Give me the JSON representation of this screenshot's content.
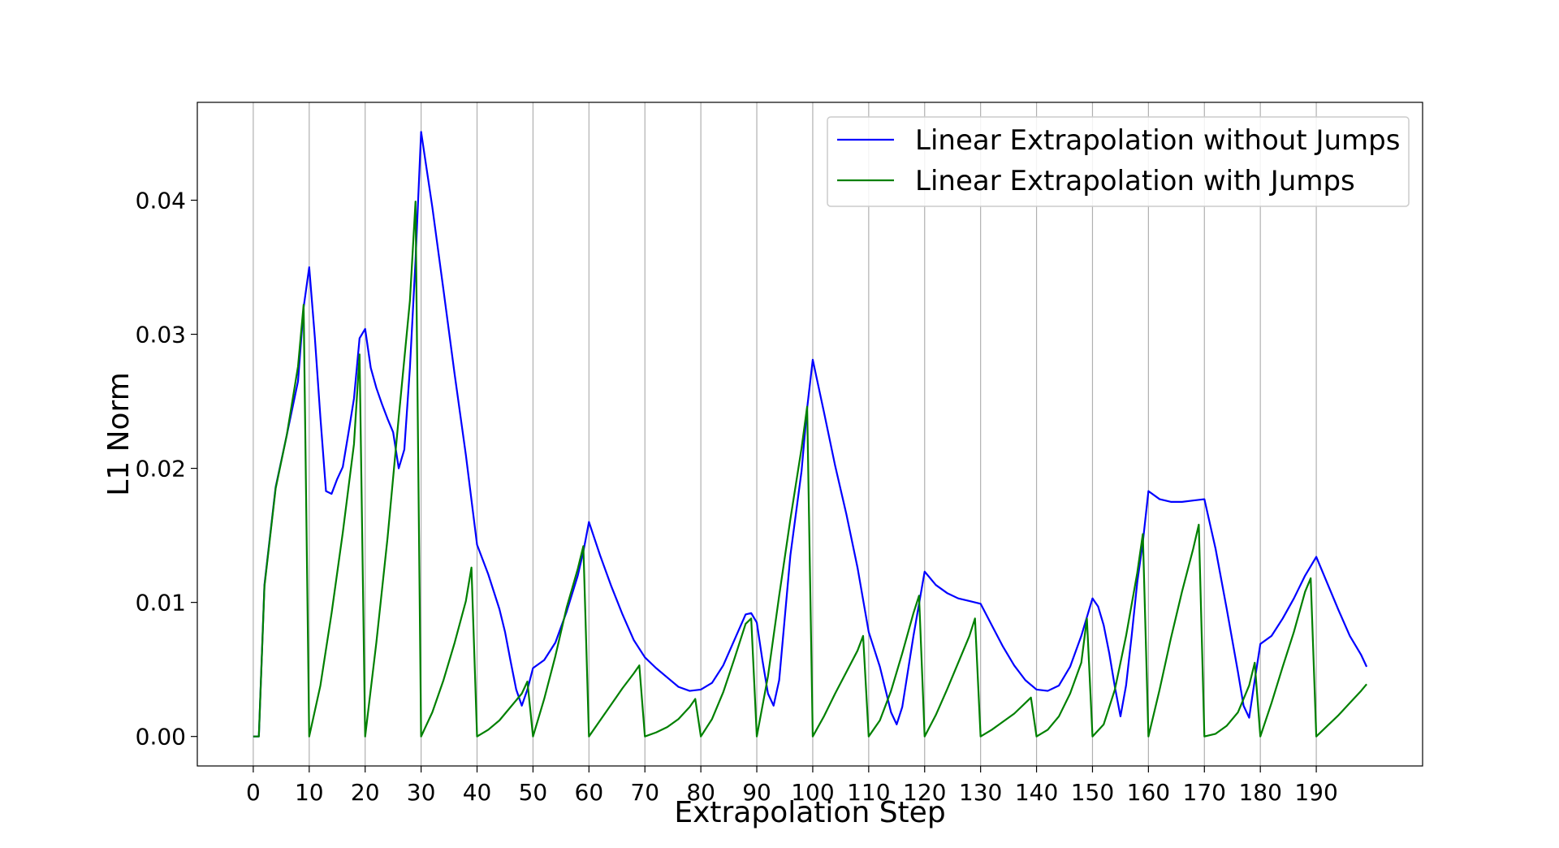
{
  "chart_data": {
    "type": "line",
    "xlabel": "Extrapolation Step",
    "ylabel": "L1 Norm",
    "xlim": [
      -10,
      209
    ],
    "ylim": [
      -0.0022,
      0.0473
    ],
    "grid": "vertical",
    "legend_position": "upper-right",
    "x_ticks": [
      0,
      10,
      20,
      30,
      40,
      50,
      60,
      70,
      80,
      90,
      100,
      110,
      120,
      130,
      140,
      150,
      160,
      170,
      180,
      190
    ],
    "y_ticks": [
      0.0,
      0.01,
      0.02,
      0.03,
      0.04
    ],
    "y_tick_labels": [
      "0.00",
      "0.01",
      "0.02",
      "0.03",
      "0.04"
    ],
    "series": [
      {
        "name": "Linear Extrapolation without Jumps",
        "color": "#0000ff",
        "points": [
          [
            0,
            0.0
          ],
          [
            1,
            0.0
          ],
          [
            2,
            0.0113
          ],
          [
            4,
            0.0186
          ],
          [
            6,
            0.0225
          ],
          [
            8,
            0.0265
          ],
          [
            9,
            0.032
          ],
          [
            10,
            0.035
          ],
          [
            11,
            0.0298
          ],
          [
            12,
            0.0238
          ],
          [
            13,
            0.0183
          ],
          [
            14,
            0.0181
          ],
          [
            15,
            0.0192
          ],
          [
            16,
            0.0201
          ],
          [
            17,
            0.0226
          ],
          [
            18,
            0.0252
          ],
          [
            19,
            0.0297
          ],
          [
            20,
            0.0304
          ],
          [
            21,
            0.0275
          ],
          [
            22,
            0.026
          ],
          [
            23,
            0.0248
          ],
          [
            24,
            0.0237
          ],
          [
            25,
            0.0227
          ],
          [
            26,
            0.02
          ],
          [
            27,
            0.0214
          ],
          [
            28,
            0.0275
          ],
          [
            29,
            0.0355
          ],
          [
            30,
            0.0451
          ],
          [
            32,
            0.0395
          ],
          [
            34,
            0.0333
          ],
          [
            36,
            0.027
          ],
          [
            38,
            0.021
          ],
          [
            40,
            0.0143
          ],
          [
            42,
            0.0121
          ],
          [
            44,
            0.0095
          ],
          [
            45,
            0.0078
          ],
          [
            46,
            0.0056
          ],
          [
            47,
            0.0035
          ],
          [
            48,
            0.0023
          ],
          [
            49,
            0.0035
          ],
          [
            50,
            0.0051
          ],
          [
            52,
            0.0057
          ],
          [
            54,
            0.007
          ],
          [
            56,
            0.0093
          ],
          [
            58,
            0.012
          ],
          [
            59,
            0.0138
          ],
          [
            60,
            0.016
          ],
          [
            62,
            0.0135
          ],
          [
            64,
            0.0112
          ],
          [
            66,
            0.0091
          ],
          [
            68,
            0.0072
          ],
          [
            70,
            0.0059
          ],
          [
            72,
            0.0051
          ],
          [
            74,
            0.0044
          ],
          [
            76,
            0.0037
          ],
          [
            78,
            0.0034
          ],
          [
            80,
            0.0035
          ],
          [
            82,
            0.004
          ],
          [
            84,
            0.0053
          ],
          [
            86,
            0.0072
          ],
          [
            88,
            0.0091
          ],
          [
            89,
            0.0092
          ],
          [
            90,
            0.0085
          ],
          [
            91,
            0.0057
          ],
          [
            92,
            0.0032
          ],
          [
            93,
            0.0023
          ],
          [
            94,
            0.0042
          ],
          [
            96,
            0.0135
          ],
          [
            98,
            0.0198
          ],
          [
            99,
            0.0245
          ],
          [
            100,
            0.0281
          ],
          [
            102,
            0.0242
          ],
          [
            104,
            0.0202
          ],
          [
            106,
            0.0166
          ],
          [
            108,
            0.0126
          ],
          [
            110,
            0.0078
          ],
          [
            112,
            0.0052
          ],
          [
            113,
            0.0035
          ],
          [
            114,
            0.0018
          ],
          [
            115,
            0.0009
          ],
          [
            116,
            0.0022
          ],
          [
            118,
            0.0075
          ],
          [
            120,
            0.0123
          ],
          [
            122,
            0.0113
          ],
          [
            124,
            0.0107
          ],
          [
            126,
            0.0103
          ],
          [
            128,
            0.0101
          ],
          [
            130,
            0.0099
          ],
          [
            132,
            0.0083
          ],
          [
            134,
            0.0067
          ],
          [
            136,
            0.0053
          ],
          [
            138,
            0.0042
          ],
          [
            140,
            0.0035
          ],
          [
            142,
            0.0034
          ],
          [
            144,
            0.0038
          ],
          [
            146,
            0.0052
          ],
          [
            148,
            0.0075
          ],
          [
            150,
            0.0103
          ],
          [
            151,
            0.0097
          ],
          [
            152,
            0.0083
          ],
          [
            153,
            0.0062
          ],
          [
            154,
            0.0037
          ],
          [
            155,
            0.0015
          ],
          [
            156,
            0.0038
          ],
          [
            157,
            0.0075
          ],
          [
            158,
            0.0115
          ],
          [
            159,
            0.0145
          ],
          [
            160,
            0.0183
          ],
          [
            162,
            0.0177
          ],
          [
            164,
            0.0175
          ],
          [
            166,
            0.0175
          ],
          [
            168,
            0.0176
          ],
          [
            170,
            0.0177
          ],
          [
            172,
            0.014
          ],
          [
            174,
            0.0095
          ],
          [
            176,
            0.0048
          ],
          [
            177,
            0.0023
          ],
          [
            178,
            0.0014
          ],
          [
            179,
            0.0042
          ],
          [
            180,
            0.0069
          ],
          [
            182,
            0.0075
          ],
          [
            184,
            0.0088
          ],
          [
            186,
            0.0103
          ],
          [
            188,
            0.012
          ],
          [
            190,
            0.0134
          ],
          [
            192,
            0.0114
          ],
          [
            194,
            0.0094
          ],
          [
            196,
            0.0075
          ],
          [
            198,
            0.0061
          ],
          [
            199,
            0.0052
          ]
        ]
      },
      {
        "name": "Linear Extrapolation with Jumps",
        "color": "#008000",
        "points": [
          [
            0,
            0.0
          ],
          [
            1,
            0.0
          ],
          [
            2,
            0.0112
          ],
          [
            4,
            0.0185
          ],
          [
            6,
            0.0225
          ],
          [
            8,
            0.0276
          ],
          [
            9,
            0.0322
          ],
          [
            10,
            0.0
          ],
          [
            12,
            0.0038
          ],
          [
            14,
            0.0092
          ],
          [
            16,
            0.0152
          ],
          [
            18,
            0.0218
          ],
          [
            19,
            0.0285
          ],
          [
            20,
            0.0
          ],
          [
            22,
            0.007
          ],
          [
            24,
            0.0148
          ],
          [
            26,
            0.0238
          ],
          [
            28,
            0.0325
          ],
          [
            29,
            0.0399
          ],
          [
            30,
            0.0
          ],
          [
            32,
            0.0018
          ],
          [
            34,
            0.0042
          ],
          [
            36,
            0.007
          ],
          [
            38,
            0.0101
          ],
          [
            39,
            0.0126
          ],
          [
            40,
            0.0
          ],
          [
            42,
            0.0005
          ],
          [
            44,
            0.0012
          ],
          [
            46,
            0.0022
          ],
          [
            48,
            0.0032
          ],
          [
            49,
            0.0041
          ],
          [
            50,
            0.0
          ],
          [
            52,
            0.0028
          ],
          [
            54,
            0.006
          ],
          [
            56,
            0.0096
          ],
          [
            58,
            0.0125
          ],
          [
            59,
            0.0142
          ],
          [
            60,
            0.0
          ],
          [
            62,
            0.0012
          ],
          [
            64,
            0.0024
          ],
          [
            66,
            0.0036
          ],
          [
            68,
            0.0047
          ],
          [
            69,
            0.0053
          ],
          [
            70,
            0.0
          ],
          [
            72,
            0.0003
          ],
          [
            74,
            0.0007
          ],
          [
            76,
            0.0013
          ],
          [
            78,
            0.0022
          ],
          [
            79,
            0.0028
          ],
          [
            80,
            0.0
          ],
          [
            82,
            0.0013
          ],
          [
            84,
            0.0033
          ],
          [
            86,
            0.0058
          ],
          [
            88,
            0.0084
          ],
          [
            89,
            0.0088
          ],
          [
            90,
            0.0
          ],
          [
            92,
            0.0045
          ],
          [
            94,
            0.0105
          ],
          [
            96,
            0.0162
          ],
          [
            98,
            0.0215
          ],
          [
            99,
            0.0246
          ],
          [
            100,
            0.0
          ],
          [
            102,
            0.0015
          ],
          [
            104,
            0.0032
          ],
          [
            106,
            0.0048
          ],
          [
            108,
            0.0064
          ],
          [
            109,
            0.0075
          ],
          [
            110,
            0.0
          ],
          [
            112,
            0.0012
          ],
          [
            114,
            0.0034
          ],
          [
            116,
            0.0062
          ],
          [
            118,
            0.0092
          ],
          [
            119,
            0.0105
          ],
          [
            120,
            0.0
          ],
          [
            122,
            0.0016
          ],
          [
            124,
            0.0035
          ],
          [
            126,
            0.0055
          ],
          [
            128,
            0.0075
          ],
          [
            129,
            0.0088
          ],
          [
            130,
            0.0
          ],
          [
            132,
            0.0005
          ],
          [
            134,
            0.0011
          ],
          [
            136,
            0.0017
          ],
          [
            138,
            0.0025
          ],
          [
            139,
            0.0029
          ],
          [
            140,
            0.0
          ],
          [
            142,
            0.0005
          ],
          [
            144,
            0.0015
          ],
          [
            146,
            0.0032
          ],
          [
            148,
            0.0055
          ],
          [
            149,
            0.0088
          ],
          [
            150,
            0.0
          ],
          [
            152,
            0.0009
          ],
          [
            154,
            0.0035
          ],
          [
            156,
            0.0075
          ],
          [
            158,
            0.0122
          ],
          [
            159,
            0.0151
          ],
          [
            160,
            0.0
          ],
          [
            162,
            0.0035
          ],
          [
            164,
            0.0073
          ],
          [
            166,
            0.0108
          ],
          [
            168,
            0.014
          ],
          [
            169,
            0.0158
          ],
          [
            170,
            0.0
          ],
          [
            172,
            0.0002
          ],
          [
            174,
            0.0008
          ],
          [
            176,
            0.0018
          ],
          [
            178,
            0.0038
          ],
          [
            179,
            0.0055
          ],
          [
            180,
            0.0
          ],
          [
            182,
            0.0025
          ],
          [
            184,
            0.0052
          ],
          [
            186,
            0.0078
          ],
          [
            188,
            0.0108
          ],
          [
            189,
            0.0118
          ],
          [
            190,
            0.0
          ],
          [
            192,
            0.0008
          ],
          [
            194,
            0.0016
          ],
          [
            196,
            0.0025
          ],
          [
            198,
            0.0034
          ],
          [
            199,
            0.0039
          ]
        ]
      }
    ]
  }
}
